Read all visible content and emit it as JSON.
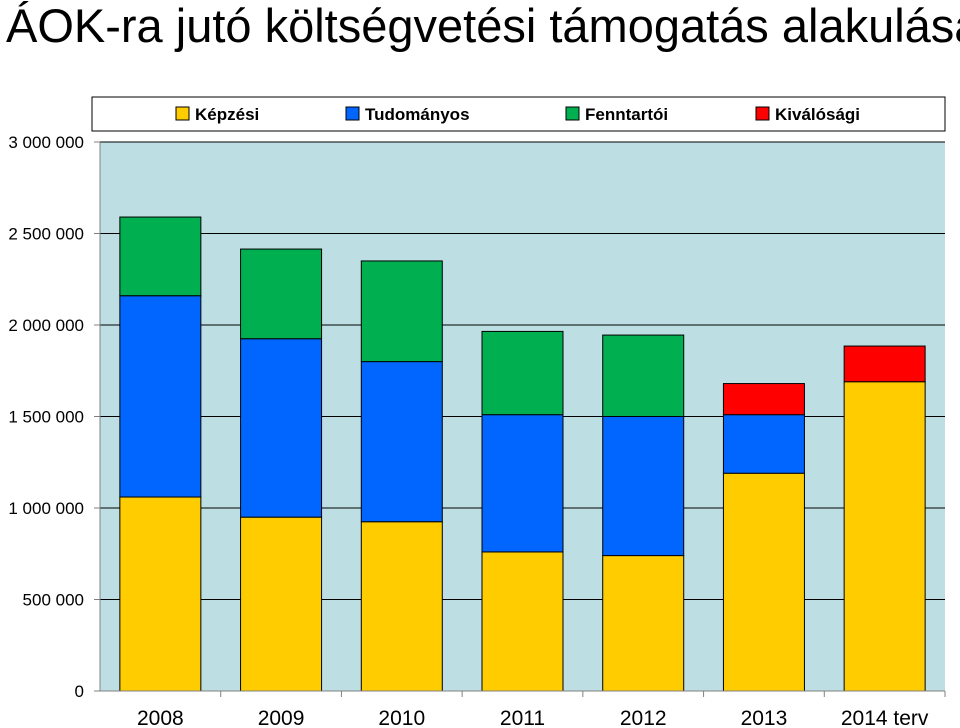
{
  "page": {
    "title": "ÁOK-ra jutó költségvetési támogatás alakulása"
  },
  "chart_data": {
    "type": "bar",
    "stacked": true,
    "categories": [
      "2008",
      "2009",
      "2010",
      "2011",
      "2012",
      "2013",
      "2014 terv"
    ],
    "series": [
      {
        "name": "Képzési",
        "color": "#FFCC00",
        "values": [
          1060000,
          950000,
          925000,
          760000,
          740000,
          1190000,
          1690000
        ]
      },
      {
        "name": "Tudományos",
        "color": "#0066FF",
        "values": [
          1100000,
          975000,
          875000,
          750000,
          760000,
          320000,
          0
        ]
      },
      {
        "name": "Fenntartói",
        "color": "#00B050",
        "values": [
          430000,
          490000,
          550000,
          455000,
          445000,
          0,
          0
        ]
      },
      {
        "name": "Kiválósági",
        "color": "#FF0000",
        "values": [
          0,
          0,
          0,
          0,
          0,
          170000,
          195000
        ]
      }
    ],
    "ylim": [
      0,
      3000000
    ],
    "yticks": [
      0,
      500000,
      1000000,
      1500000,
      2000000,
      2500000,
      3000000
    ],
    "ytick_labels": [
      "0",
      "500 000",
      "1 000 000",
      "1 500 000",
      "2 000 000",
      "2 500 000",
      "3 000 000"
    ],
    "grid": true,
    "legend_position": "top",
    "plot_background": "#BDDFE3"
  }
}
